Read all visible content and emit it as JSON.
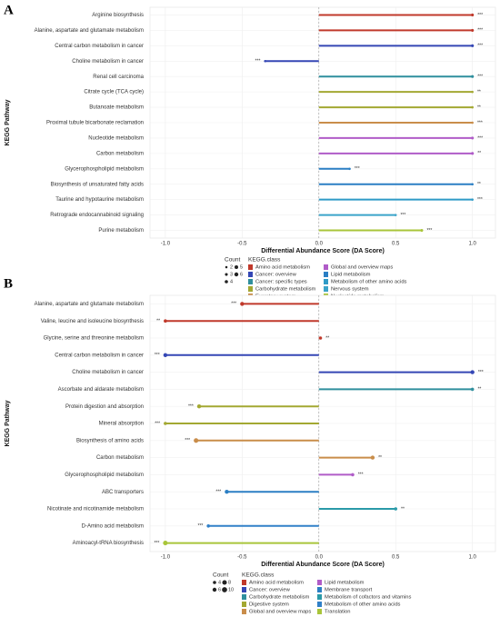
{
  "chart_data": [
    {
      "type": "lollipop",
      "panel": "A",
      "ylabel": "KEGG Pathway",
      "xlabel": "Differential Abundance Score (DA Score)",
      "xlim": [
        -1.1,
        1.15
      ],
      "xticks": [
        {
          "value": -1,
          "label": "-1.0"
        },
        -0.5,
        {
          "value": 0,
          "label": "0.0"
        },
        0.5,
        {
          "value": 1,
          "label": "1.0"
        }
      ],
      "grid": true,
      "size_title": "Count",
      "size_legend": [
        2,
        3,
        4,
        5,
        6
      ],
      "legend_title": "KEGG.class",
      "series": [
        {
          "name": "Amino acid metabolism",
          "color": "#c0392b",
          "categories": [
            "Arginine biosynthesis",
            "Alanine, aspartate and glutamate metabolism"
          ],
          "values": [
            1,
            1
          ],
          "sig": [
            "***",
            "***"
          ],
          "counts": [
            3,
            3
          ]
        },
        {
          "name": "Cancer: overview",
          "color": "#3547b5",
          "categories": [
            "Central carbon metabolism in cancer",
            "Choline metabolism in cancer"
          ],
          "values": [
            1,
            -0.35
          ],
          "sig": [
            "***",
            "***"
          ],
          "counts": [
            3,
            2
          ]
        },
        {
          "name": "Cancer: specific types",
          "color": "#2f8f9d",
          "categories": [
            "Renal cell carcinoma"
          ],
          "values": [
            1
          ],
          "sig": [
            "***"
          ],
          "counts": [
            3
          ]
        },
        {
          "name": "Carbohydrate metabolism",
          "color": "#a3a832",
          "categories": [
            "Citrate cycle (TCA cycle)",
            "Butanoate metabolism"
          ],
          "values": [
            1,
            1
          ],
          "sig": [
            "**",
            "**"
          ],
          "counts": [
            2,
            2
          ]
        },
        {
          "name": "Excretory system",
          "color": "#c98d4a",
          "categories": [
            "Proximal tubule bicarbonate reclamation"
          ],
          "values": [
            1
          ],
          "sig": [
            "***"
          ],
          "counts": [
            2
          ]
        },
        {
          "name": "Global and overview maps",
          "color": "#b05cc8",
          "categories": [
            "Nucleotide metabolism",
            "Carbon metabolism"
          ],
          "values": [
            1,
            1
          ],
          "sig": [
            "***",
            "**"
          ],
          "counts": [
            3,
            3
          ]
        },
        {
          "name": "Lipid metabolism",
          "color": "#2b7fc4",
          "categories": [
            "Glycerophospholipid metabolism",
            "Biosynthesis of unsaturated fatty acids"
          ],
          "values": [
            0.2,
            1
          ],
          "sig": [
            "***",
            "**"
          ],
          "counts": [
            2,
            2
          ]
        },
        {
          "name": "Metabolism of other amino acids",
          "color": "#2f9bc7",
          "categories": [
            "Taurine and hypotaurine metabolism"
          ],
          "values": [
            1
          ],
          "sig": [
            "***"
          ],
          "counts": [
            2
          ]
        },
        {
          "name": "Nervous system",
          "color": "#3aa3c9",
          "categories": [
            "Retrograde endocannabinoid signaling"
          ],
          "values": [
            0.5
          ],
          "sig": [
            "***"
          ],
          "counts": [
            2
          ]
        },
        {
          "name": "Nucleotide metabolism",
          "color": "#a9c53a",
          "categories": [
            "Purine metabolism"
          ],
          "values": [
            0.67
          ],
          "sig": [
            "***"
          ],
          "counts": [
            3
          ]
        }
      ]
    },
    {
      "type": "lollipop",
      "panel": "B",
      "ylabel": "KEGG Pathway",
      "xlabel": "Differential Abundance Score (DA Score)",
      "xlim": [
        -1.1,
        1.15
      ],
      "xticks": [
        {
          "value": -1,
          "label": "-1.0"
        },
        -0.5,
        {
          "value": 0,
          "label": "0.0"
        },
        0.5,
        {
          "value": 1,
          "label": "1.0"
        }
      ],
      "grid": true,
      "size_title": "Count",
      "size_legend": [
        4,
        6,
        8,
        10
      ],
      "legend_title": "KEGG.class",
      "series": [
        {
          "name": "Amino acid metabolism",
          "color": "#c0392b",
          "categories": [
            "Alanine, aspartate and glutamate metabolism",
            "Valine, leucine and isoleucine biosynthesis",
            "Glycine, serine and threonine metabolism"
          ],
          "values": [
            -0.5,
            -1,
            0.01
          ],
          "sig": [
            "***",
            "**",
            "**"
          ],
          "counts": [
            6,
            4,
            4
          ]
        },
        {
          "name": "Cancer: overview",
          "color": "#3547b5",
          "categories": [
            "Central carbon metabolism in cancer",
            "Choline metabolism in cancer"
          ],
          "values": [
            -1,
            1
          ],
          "sig": [
            "***",
            "***"
          ],
          "counts": [
            6,
            6
          ]
        },
        {
          "name": "Carbohydrate metabolism",
          "color": "#2f8f9d",
          "categories": [
            "Ascorbate and aldarate metabolism"
          ],
          "values": [
            1
          ],
          "sig": [
            "**"
          ],
          "counts": [
            4
          ]
        },
        {
          "name": "Digestive system",
          "color": "#a3a832",
          "categories": [
            "Protein digestion and absorption",
            "Mineral absorption"
          ],
          "values": [
            -0.78,
            -1
          ],
          "sig": [
            "***",
            "***"
          ],
          "counts": [
            6,
            4
          ]
        },
        {
          "name": "Global and overview maps",
          "color": "#c98d4a",
          "categories": [
            "Biosynthesis of amino acids",
            "Carbon metabolism"
          ],
          "values": [
            -0.8,
            0.35
          ],
          "sig": [
            "***",
            "**"
          ],
          "counts": [
            8,
            6
          ]
        },
        {
          "name": "Lipid metabolism",
          "color": "#b05cc8",
          "categories": [
            "Glycerophospholipid metabolism"
          ],
          "values": [
            0.22
          ],
          "sig": [
            "***"
          ],
          "counts": [
            4
          ]
        },
        {
          "name": "Membrane transport",
          "color": "#2b7fc4",
          "categories": [
            "ABC transporters"
          ],
          "values": [
            -0.6
          ],
          "sig": [
            "***"
          ],
          "counts": [
            6
          ]
        },
        {
          "name": "Metabolism of cofactors and vitamins",
          "color": "#2a9aa8",
          "categories": [
            "Nicotinate and nicotinamide metabolism"
          ],
          "values": [
            0.5
          ],
          "sig": [
            "**"
          ],
          "counts": [
            4
          ]
        },
        {
          "name": "Metabolism of other amino acids",
          "color": "#3080c8",
          "categories": [
            "D-Amino acid metabolism"
          ],
          "values": [
            -0.72
          ],
          "sig": [
            "***"
          ],
          "counts": [
            4
          ]
        },
        {
          "name": "Translation",
          "color": "#a9c53a",
          "categories": [
            "Aminoacyl-tRNA biosynthesis"
          ],
          "values": [
            -1
          ],
          "sig": [
            "***"
          ],
          "counts": [
            8
          ]
        }
      ]
    }
  ]
}
